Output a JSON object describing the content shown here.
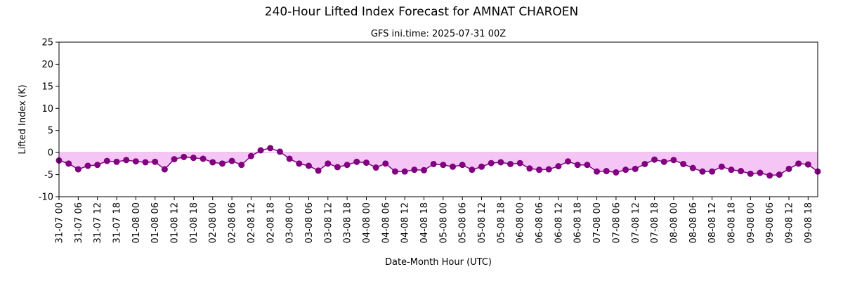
{
  "chart_data": {
    "type": "line",
    "title": "240-Hour Lifted Index Forecast for AMNAT CHAROEN",
    "subtitle": "GFS ini.time: 2025-07-31 00Z",
    "xlabel": "Date-Month Hour (UTC)",
    "ylabel": "Lifted Index (K)",
    "ylim": [
      -10,
      25
    ],
    "yticks": [
      -10,
      -5,
      0,
      5,
      10,
      15,
      20,
      25
    ],
    "x_start": "2025-07-31 00Z",
    "x_step_hours": 3,
    "xticks": [
      "31-07 00",
      "31-07 06",
      "31-07 12",
      "31-07 18",
      "01-08 00",
      "01-08 06",
      "01-08 12",
      "01-08 18",
      "02-08 00",
      "02-08 06",
      "02-08 12",
      "02-08 18",
      "03-08 00",
      "03-08 06",
      "03-08 12",
      "03-08 18",
      "04-08 00",
      "04-08 06",
      "04-08 12",
      "04-08 18",
      "05-08 00",
      "05-08 06",
      "05-08 12",
      "05-08 18",
      "06-08 00",
      "06-08 06",
      "06-08 12",
      "06-08 18",
      "07-08 00",
      "07-08 06",
      "07-08 12",
      "07-08 18",
      "08-08 00",
      "08-08 06",
      "08-08 12",
      "08-08 18",
      "09-08 00",
      "09-08 06",
      "09-08 12",
      "09-08 18"
    ],
    "line_color": "#800080",
    "fill_color": "#f5c6f5",
    "grid": false,
    "series": [
      {
        "values": [
          -1.8,
          -2.5,
          -3.8,
          -3.0,
          -2.8,
          -1.9,
          -2.1,
          -1.7,
          -2.0,
          -2.2,
          -2.1,
          -3.8,
          -1.5,
          -1.0,
          -1.2,
          -1.4,
          -2.2,
          -2.5,
          -1.9,
          -2.8,
          -0.8,
          0.5,
          1.0,
          0.2,
          -1.4,
          -2.5,
          -3.0,
          -4.1,
          -2.5,
          -3.3,
          -2.8,
          -2.1,
          -2.3,
          -3.4,
          -2.5,
          -4.3,
          -4.3,
          -3.9,
          -4.0,
          -2.6,
          -2.8,
          -3.2,
          -2.8,
          -3.9,
          -3.2,
          -2.4,
          -2.2,
          -2.6,
          -2.4,
          -3.6,
          -3.9,
          -3.8,
          -3.1,
          -2.0,
          -2.8,
          -2.8,
          -4.3,
          -4.2,
          -4.5,
          -3.9,
          -3.7,
          -2.6,
          -1.6,
          -2.1,
          -1.7,
          -2.6,
          -3.5,
          -4.3,
          -4.3,
          -3.2,
          -3.9,
          -4.2,
          -4.8,
          -4.6,
          -5.2,
          -5.0,
          -3.7,
          -2.5,
          -2.7,
          -4.3
        ]
      }
    ]
  }
}
